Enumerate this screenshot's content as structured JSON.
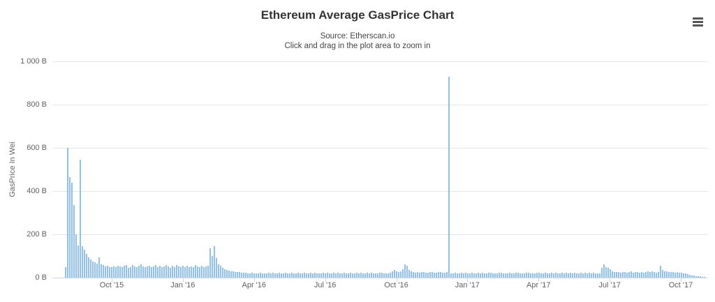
{
  "chart_data": {
    "type": "bar",
    "title": "Ethereum Average GasPrice Chart",
    "subtitle": [
      "Source: Etherscan.io",
      "Click and drag in the plot area to zoom in"
    ],
    "ylabel": "GasPrice In Wei",
    "xlabel": "",
    "unit": "B",
    "ylim": [
      0,
      1000
    ],
    "grid": true,
    "legend": "none",
    "y_ticks": [
      {
        "value": 0,
        "label": "0 B"
      },
      {
        "value": 200,
        "label": "200 B"
      },
      {
        "value": 400,
        "label": "400 B"
      },
      {
        "value": 600,
        "label": "600 B"
      },
      {
        "value": 800,
        "label": "800 B"
      },
      {
        "value": 1000,
        "label": "1 000 B"
      }
    ],
    "x_ticks": [
      "Oct '15",
      "Jan '16",
      "Apr '16",
      "Jul '16",
      "Oct '16",
      "Jan '17",
      "Apr '17",
      "Jul '17",
      "Oct '17"
    ],
    "x_range": "Aug 2015 to Nov 2017, one point per ~3 days",
    "series": [
      {
        "name": "Average GasPrice (B wei)",
        "color": "#7cb5ec",
        "values": [
          50,
          600,
          465,
          440,
          335,
          200,
          150,
          545,
          145,
          130,
          110,
          95,
          85,
          75,
          70,
          65,
          95,
          60,
          58,
          52,
          55,
          48,
          50,
          53,
          47,
          56,
          51,
          49,
          54,
          58,
          46,
          50,
          57,
          52,
          48,
          55,
          60,
          53,
          49,
          51,
          56,
          47,
          52,
          58,
          50,
          54,
          48,
          53,
          57,
          51,
          46,
          55,
          50,
          59,
          52,
          48,
          54,
          50,
          56,
          49,
          53,
          47,
          57,
          52,
          50,
          55,
          48,
          51,
          54,
          135,
          100,
          145,
          90,
          60,
          55,
          45,
          40,
          35,
          32,
          30,
          28,
          27,
          26,
          25,
          24,
          23,
          22,
          20,
          19,
          23,
          21,
          20,
          18,
          22,
          20,
          21,
          19,
          24,
          20,
          22,
          18,
          21,
          23,
          20,
          19,
          22,
          21,
          20,
          24,
          19,
          21,
          22,
          20,
          18,
          23,
          21,
          20,
          22,
          19,
          24,
          20,
          21,
          18,
          22,
          20,
          23,
          21,
          19,
          22,
          20,
          24,
          18,
          21,
          22,
          20,
          19,
          23,
          21,
          20,
          22,
          18,
          24,
          21,
          19,
          22,
          20,
          23,
          20,
          21,
          19,
          22,
          24,
          20,
          21,
          18,
          22,
          30,
          35,
          28,
          25,
          30,
          40,
          62,
          55,
          35,
          28,
          25,
          24,
          26,
          23,
          25,
          27,
          24,
          22,
          26,
          25,
          23,
          24,
          27,
          25,
          22,
          24,
          26,
          930,
          21,
          20,
          22,
          19,
          21,
          23,
          20,
          22,
          21,
          19,
          24,
          20,
          21,
          22,
          19,
          23,
          21,
          20,
          24,
          22,
          19,
          21,
          20,
          23,
          22,
          20,
          21,
          19,
          24,
          21,
          20,
          22,
          23,
          19,
          21,
          20,
          22,
          24,
          20,
          21,
          19,
          23,
          22,
          20,
          21,
          24,
          19,
          21,
          22,
          20,
          23,
          21,
          19,
          22,
          20,
          24,
          21,
          22,
          19,
          23,
          20,
          21,
          22,
          19,
          24,
          20,
          22,
          21,
          23,
          19,
          21,
          20,
          45,
          60,
          50,
          44,
          38,
          30,
          27,
          25,
          26,
          24,
          25,
          27,
          23,
          25,
          28,
          24,
          26,
          25,
          23,
          27,
          24,
          26,
          28,
          25,
          30,
          26,
          24,
          27,
          55,
          35,
          30,
          28,
          26,
          25,
          27,
          24,
          26,
          23,
          22,
          20,
          18,
          15,
          13,
          11,
          9,
          8,
          6,
          5,
          4,
          3
        ]
      }
    ],
    "colors": {
      "bar": "#7cb5ec",
      "grid": "#e6e6e6",
      "axis_line": "#ccd6eb",
      "tick_label": "#606060",
      "title": "#333333"
    }
  }
}
